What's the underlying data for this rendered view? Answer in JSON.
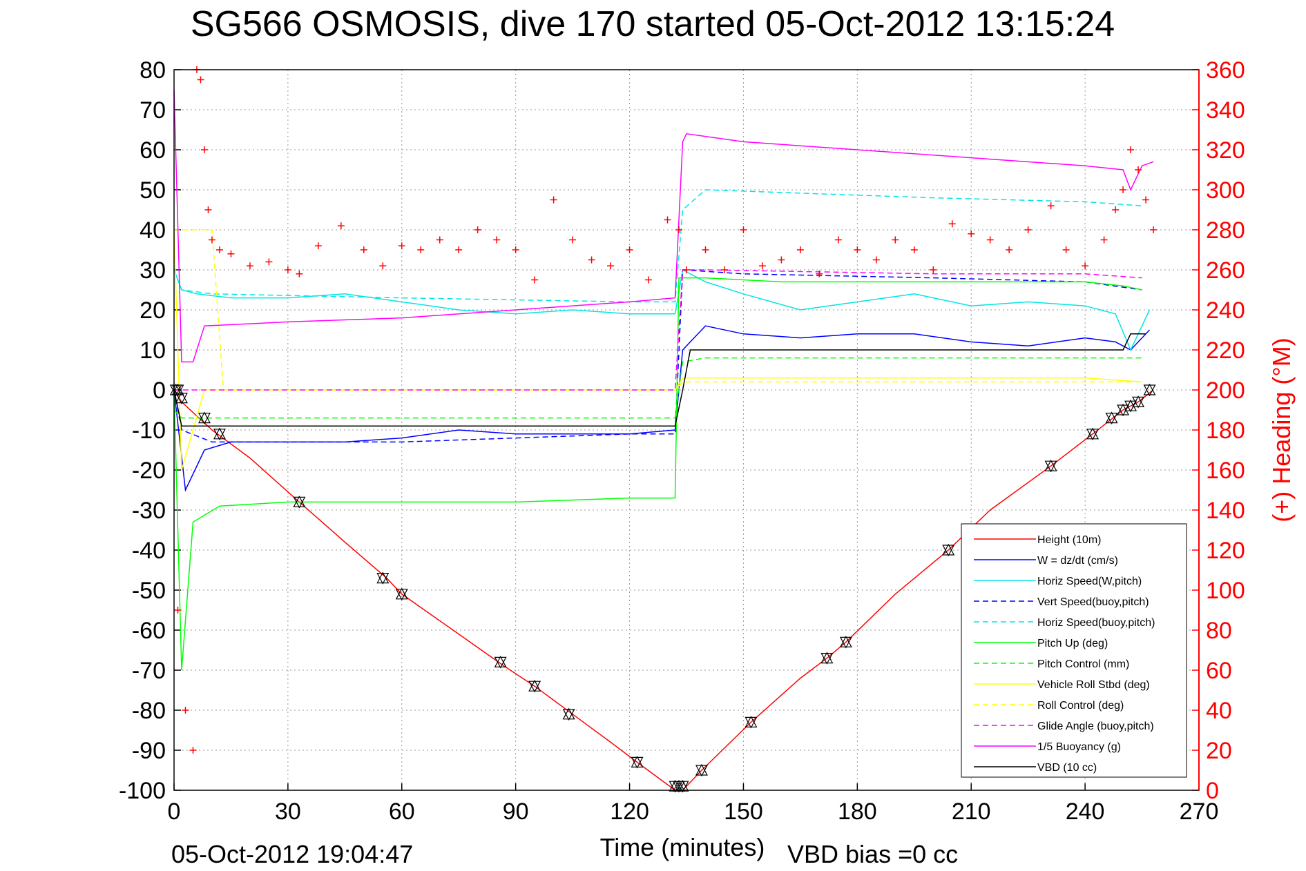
{
  "chart_data": {
    "type": "line",
    "title": "SG566 OSMOSIS, dive 170 started 05-Oct-2012 13:15:24",
    "xlabel": "Time (minutes)",
    "ylabel_right": "(+) Heading (°M)",
    "footer_left": "05-Oct-2012 19:04:47",
    "footer_right": "VBD bias =0 cc",
    "xlim": [
      0,
      270
    ],
    "ylim_left": [
      -100,
      80
    ],
    "ylim_right": [
      0,
      360
    ],
    "grid": true,
    "legend_placement": "bottom-right",
    "x_ticks": [
      "0",
      "30",
      "60",
      "90",
      "120",
      "150",
      "180",
      "210",
      "240",
      "270"
    ],
    "y_left_ticks": [
      "80",
      "70",
      "60",
      "50",
      "40",
      "30",
      "20",
      "10",
      "0",
      "-10",
      "-20",
      "-30",
      "-40",
      "-50",
      "-60",
      "-70",
      "-80",
      "-90",
      "-100"
    ],
    "y_right_ticks": [
      "360",
      "340",
      "320",
      "300",
      "280",
      "260",
      "240",
      "220",
      "200",
      "180",
      "160",
      "140",
      "120",
      "100",
      "80",
      "60",
      "40",
      "20",
      "0"
    ],
    "series": [
      {
        "name": "Height (10m)",
        "color": "#ff0000",
        "style": "solid",
        "x": [
          0,
          2,
          10,
          20,
          33,
          45,
          56,
          60,
          75,
          87,
          95,
          105,
          115,
          122,
          132,
          134,
          139,
          152,
          165,
          172,
          177,
          190,
          204,
          215,
          231,
          242,
          250,
          254,
          258
        ],
        "y": [
          0,
          -3,
          -10,
          -17,
          -28,
          -38,
          -47,
          -51,
          -61,
          -69,
          -74,
          -81,
          -88,
          -93,
          -100,
          -100,
          -95,
          -83,
          -72,
          -67,
          -63,
          -51,
          -40,
          -30,
          -19,
          -11,
          -5,
          -3,
          0
        ]
      },
      {
        "name": "W = dz/dt (cm/s)",
        "color": "#0000ff",
        "style": "solid",
        "x": [
          0,
          3,
          8,
          15,
          30,
          45,
          60,
          75,
          90,
          105,
          120,
          132,
          134,
          140,
          150,
          165,
          180,
          195,
          210,
          225,
          240,
          248,
          252,
          257
        ],
        "y": [
          0,
          -25,
          -15,
          -13,
          -13,
          -13,
          -12,
          -10,
          -11,
          -11,
          -11,
          -10,
          10,
          16,
          14,
          13,
          14,
          14,
          12,
          11,
          13,
          12,
          10,
          15
        ]
      },
      {
        "name": "Horiz Speed(W,pitch)",
        "color": "#00e5e5",
        "style": "solid",
        "x": [
          0,
          2,
          6,
          15,
          30,
          45,
          60,
          75,
          90,
          105,
          120,
          132,
          134,
          140,
          150,
          165,
          180,
          195,
          210,
          225,
          240,
          248,
          252,
          257
        ],
        "y": [
          30,
          25,
          24,
          23,
          23,
          24,
          22,
          20,
          19,
          20,
          19,
          19,
          30,
          27,
          24,
          20,
          22,
          24,
          21,
          22,
          21,
          19,
          10,
          20
        ]
      },
      {
        "name": "Vert Speed(buoy,pitch)",
        "color": "#0000ff",
        "style": "dashed",
        "x": [
          0,
          2,
          10,
          60,
          120,
          132,
          134,
          150,
          200,
          240,
          255
        ],
        "y": [
          0,
          -10,
          -13,
          -13,
          -11,
          -11,
          30,
          29,
          28,
          27,
          25
        ]
      },
      {
        "name": "Horiz Speed(buoy,pitch)",
        "color": "#00e5e5",
        "style": "dashed",
        "x": [
          0,
          2,
          10,
          60,
          120,
          132,
          134,
          140,
          200,
          240,
          255
        ],
        "y": [
          30,
          25,
          24,
          23,
          22,
          22,
          45,
          50,
          48,
          47,
          46
        ]
      },
      {
        "name": "Pitch Up (deg)",
        "color": "#00ff00",
        "style": "solid",
        "x": [
          0,
          2,
          5,
          12,
          30,
          60,
          90,
          120,
          132,
          133,
          140,
          160,
          180,
          210,
          240,
          250,
          255
        ],
        "y": [
          0,
          -70,
          -33,
          -29,
          -28,
          -28,
          -28,
          -27,
          -27,
          28,
          28,
          27,
          27,
          27,
          27,
          26,
          25
        ]
      },
      {
        "name": "Pitch Control (mm)",
        "color": "#00ff00",
        "style": "dashed",
        "x": [
          0,
          2,
          8,
          60,
          120,
          132,
          134,
          140,
          200,
          250,
          255
        ],
        "y": [
          -5,
          -7,
          -7,
          -7,
          -7,
          -7,
          7,
          8,
          8,
          8,
          8
        ]
      },
      {
        "name": "Vehicle Roll Stbd (deg)",
        "color": "#ffff00",
        "style": "solid",
        "x": [
          0,
          2,
          8,
          20,
          60,
          90,
          120,
          132,
          134,
          150,
          200,
          240,
          255
        ],
        "y": [
          40,
          -20,
          0,
          0,
          0,
          0,
          0,
          0,
          3,
          3,
          3,
          3,
          2
        ]
      },
      {
        "name": "Roll Control (deg)",
        "color": "#ffff00",
        "style": "dashed",
        "x": [
          0,
          2,
          4,
          10,
          13,
          20,
          60,
          120,
          132,
          134,
          200,
          255
        ],
        "y": [
          40,
          40,
          40,
          40,
          0,
          0,
          0,
          0,
          0,
          2,
          2,
          2
        ]
      },
      {
        "name": "Glide Angle (buoy,pitch)",
        "color": "#ff00ff",
        "style": "dashed",
        "x": [
          0,
          2,
          60,
          120,
          132,
          134,
          140,
          200,
          240,
          255
        ],
        "y": [
          0,
          0,
          0,
          0,
          0,
          30,
          30,
          29,
          29,
          28
        ]
      },
      {
        "name": "1/5 Buoyancy (g)",
        "color": "#ff00ff",
        "style": "solid",
        "x": [
          0,
          2,
          5,
          8,
          30,
          60,
          90,
          120,
          132,
          134,
          135,
          150,
          180,
          210,
          240,
          250,
          252,
          255,
          258
        ],
        "y": [
          75,
          7,
          7,
          16,
          17,
          18,
          20,
          22,
          23,
          62,
          64,
          62,
          60,
          58,
          56,
          55,
          50,
          56,
          57
        ]
      },
      {
        "name": "VBD (10 cc)",
        "color": "#000000",
        "style": "solid",
        "x": [
          0,
          2,
          60,
          120,
          132,
          134,
          136,
          150,
          200,
          240,
          250,
          252,
          256
        ],
        "y": [
          0,
          -9,
          -9,
          -9,
          -9,
          0,
          10,
          10,
          10,
          10,
          10,
          14,
          14
        ]
      }
    ],
    "heading_series": {
      "name": "(+) Heading",
      "color": "#ff0000",
      "marker": "+",
      "x": [
        1,
        3,
        5,
        6,
        7,
        8,
        9,
        10,
        12,
        15,
        20,
        25,
        30,
        33,
        38,
        44,
        50,
        55,
        60,
        65,
        70,
        75,
        80,
        85,
        90,
        95,
        100,
        105,
        110,
        115,
        120,
        125,
        130,
        133,
        135,
        140,
        145,
        150,
        155,
        160,
        165,
        170,
        175,
        180,
        185,
        190,
        195,
        200,
        205,
        210,
        215,
        220,
        225,
        231,
        235,
        240,
        245,
        248,
        250,
        252,
        254,
        256,
        258
      ],
      "y": [
        90,
        40,
        20,
        360,
        355,
        320,
        290,
        275,
        270,
        268,
        262,
        264,
        260,
        258,
        272,
        282,
        270,
        262,
        272,
        270,
        275,
        270,
        280,
        275,
        270,
        255,
        295,
        275,
        265,
        262,
        270,
        255,
        285,
        280,
        260,
        270,
        260,
        280,
        262,
        265,
        270,
        258,
        275,
        270,
        265,
        275,
        270,
        260,
        283,
        278,
        275,
        270,
        280,
        292,
        270,
        262,
        275,
        290,
        300,
        320,
        310,
        295,
        280
      ]
    },
    "waypoint_markers": {
      "x": [
        0.5,
        1,
        2,
        8,
        12,
        33,
        55,
        60,
        86,
        95,
        104,
        122,
        132,
        133,
        134,
        139,
        152,
        172,
        177,
        204,
        231,
        242,
        247,
        250,
        252,
        254,
        257
      ],
      "y": [
        0,
        0,
        -2,
        -7,
        -11,
        -28,
        -47,
        -51,
        -68,
        -74,
        -81,
        -93,
        -99,
        -99,
        -99,
        -95,
        -83,
        -67,
        -63,
        -40,
        -19,
        -11,
        -7,
        -5,
        -4,
        -3,
        0
      ]
    }
  }
}
